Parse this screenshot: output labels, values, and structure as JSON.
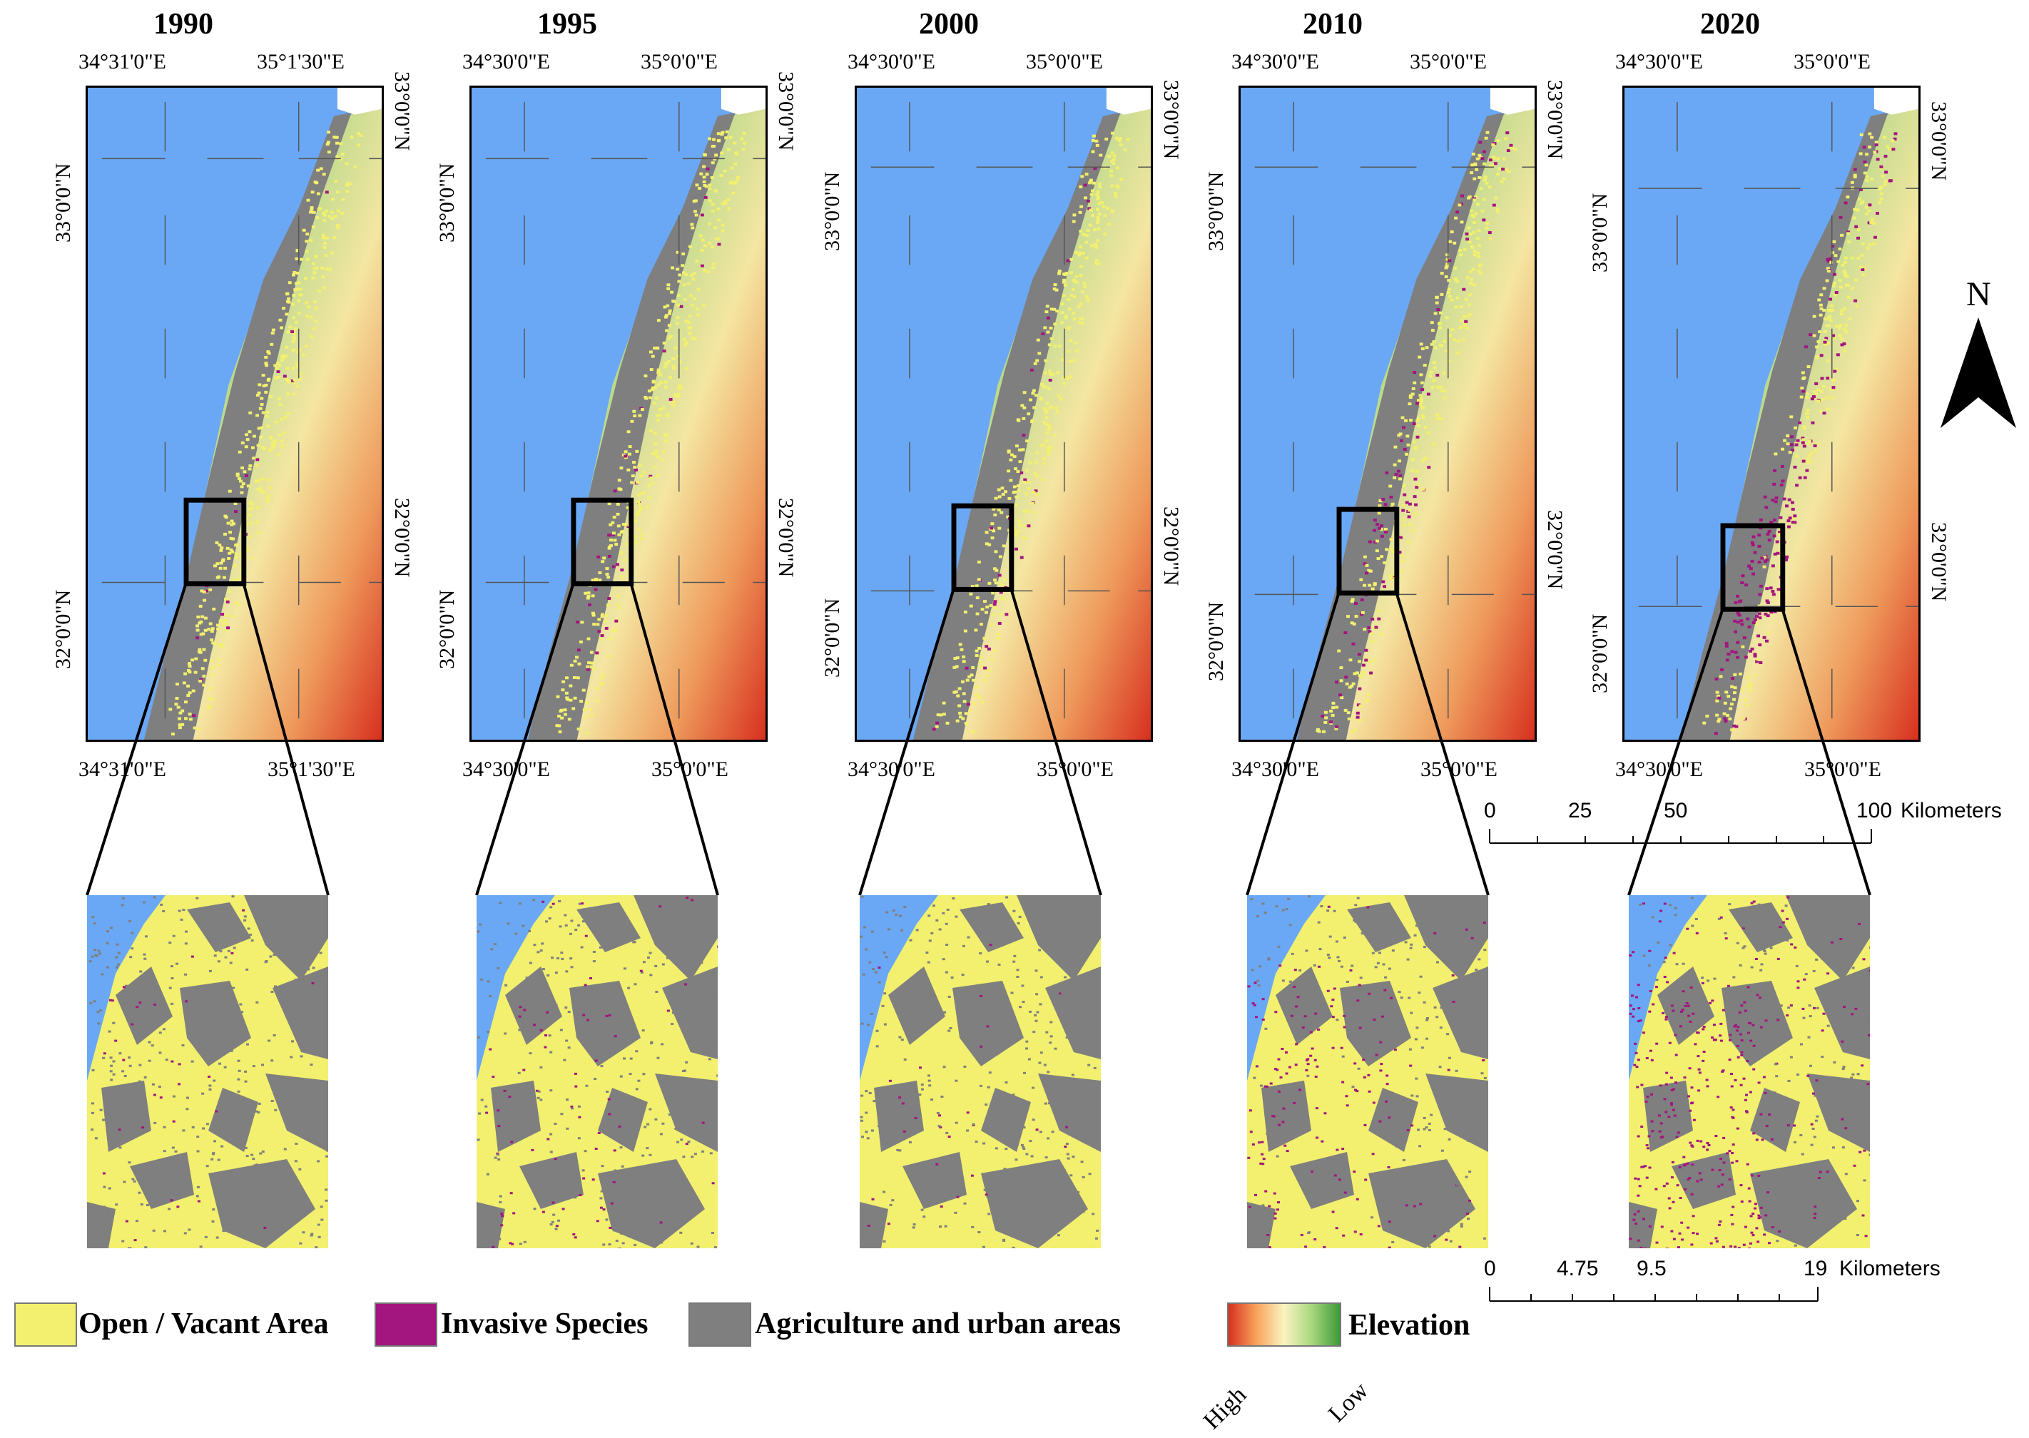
{
  "panels": [
    {
      "year": "1990",
      "top_lon_left": "34°31'0\"E",
      "top_lon_right": "35°1'30\"E",
      "bot_lon_left": "34°31'0\"E",
      "bot_lon_right": "35°1'30\"E",
      "lat_top": "33°0'0\"N",
      "lat_bottom": "32°0'0\"N"
    },
    {
      "year": "1995",
      "top_lon_left": "34°30'0\"E",
      "top_lon_right": "35°0'0\"E",
      "bot_lon_left": "34°30'0\"E",
      "bot_lon_right": "35°0'0\"E",
      "lat_top": "33°0'0\"N",
      "lat_bottom": "32°0'0\"N"
    },
    {
      "year": "2000",
      "top_lon_left": "34°30'0\"E",
      "top_lon_right": "35°0'0\"E",
      "bot_lon_left": "34°30'0\"E",
      "bot_lon_right": "35°0'0\"E",
      "lat_top": "33°0'0\"N",
      "lat_bottom": "32°0'0\"N"
    },
    {
      "year": "2010",
      "top_lon_left": "34°30'0\"E",
      "top_lon_right": "35°0'0\"E",
      "bot_lon_left": "34°30'0\"E",
      "bot_lon_right": "35°0'0\"E",
      "lat_top": "33°0'0\"N",
      "lat_bottom": "32°0'0\"N"
    },
    {
      "year": "2020",
      "top_lon_left": "34°30'0\"E",
      "top_lon_right": "35°0'0\"E",
      "bot_lon_left": "34°30'0\"E",
      "bot_lon_right": "35°0'0\"E",
      "lat_top": "33°0'0\"N",
      "lat_bottom": "32°0'0\"N"
    }
  ],
  "north_arrow": {
    "label": "N"
  },
  "scale_large": {
    "ticks": [
      "0",
      "25",
      "50",
      "100"
    ],
    "unit": "Kilometers"
  },
  "scale_small": {
    "ticks": [
      "0",
      "4.75",
      "9.5",
      "19"
    ],
    "unit": "Kilometers"
  },
  "legend": {
    "open_area": "Open / Vacant Area",
    "invasive": "Invasive Species",
    "agri_urban": "Agriculture and urban areas",
    "elevation": "Elevation",
    "high": "High",
    "low": "Low"
  },
  "colors": {
    "sea": "#6aa8f5",
    "open": "#f2f06e",
    "invasive": "#a3157f",
    "urban": "#7f7f7f",
    "elev_low": "#3e9a3a",
    "elev_mid": "#fbf4c2",
    "elev_high": "#d7301f"
  },
  "invasive_density": [
    0.05,
    0.12,
    0.06,
    0.28,
    0.55
  ]
}
